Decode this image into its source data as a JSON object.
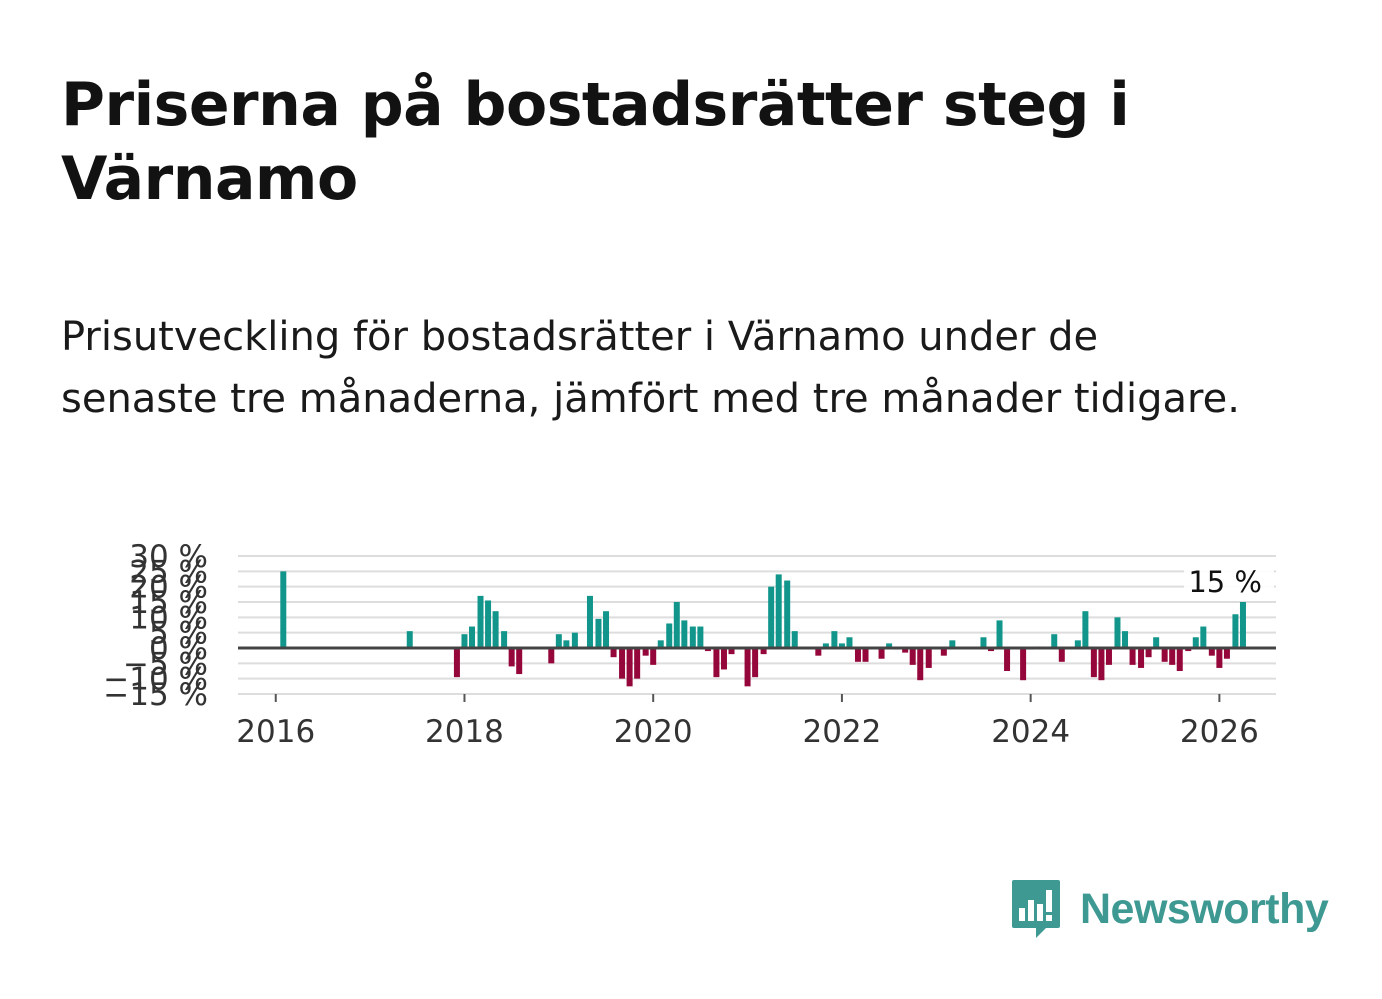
{
  "title": "Priserna på bostadsrätter steg i Värnamo",
  "subtitle": "Prisutveckling för bostadsrätter i Värnamo under de senaste tre månaderna, jämfört med tre månader tidigare.",
  "brand": {
    "name": "Newsworthy",
    "icon": "newsworthy-logo-icon"
  },
  "colors": {
    "positive": "#12968c",
    "negative": "#95063a",
    "grid": "#dddddd",
    "zero": "#444444",
    "brand": "#3e9993"
  },
  "chart_data": {
    "type": "bar",
    "title": "",
    "xlabel": "",
    "ylabel": "",
    "ylim": [
      -15,
      30
    ],
    "xlim": [
      2015.6,
      2026.6
    ],
    "y_ticks": [
      {
        "value": -15,
        "label": "−15 %"
      },
      {
        "value": -10,
        "label": "−10 %"
      },
      {
        "value": -5,
        "label": "−5 %"
      },
      {
        "value": 0,
        "label": "0 %"
      },
      {
        "value": 5,
        "label": "5 %"
      },
      {
        "value": 10,
        "label": "10 %"
      },
      {
        "value": 15,
        "label": "15 %"
      },
      {
        "value": 20,
        "label": "20 %"
      },
      {
        "value": 25,
        "label": "25 %"
      },
      {
        "value": 30,
        "label": "30 %"
      }
    ],
    "x_ticks": [
      {
        "value": 2016,
        "label": "2016"
      },
      {
        "value": 2018,
        "label": "2018"
      },
      {
        "value": 2020,
        "label": "2020"
      },
      {
        "value": 2022,
        "label": "2022"
      },
      {
        "value": 2024,
        "label": "2024"
      },
      {
        "value": 2026,
        "label": "2026"
      }
    ],
    "end_label": "15 %",
    "series": [
      {
        "name": "Prisutveckling",
        "points": [
          [
            2016.08,
            25
          ],
          [
            2017.42,
            5.5
          ],
          [
            2017.92,
            -9.5
          ],
          [
            2018.0,
            4.5
          ],
          [
            2018.08,
            7
          ],
          [
            2018.17,
            17
          ],
          [
            2018.25,
            15.5
          ],
          [
            2018.33,
            12
          ],
          [
            2018.42,
            5.5
          ],
          [
            2018.5,
            -6
          ],
          [
            2018.58,
            -8.5
          ],
          [
            2018.92,
            -5
          ],
          [
            2019.0,
            4.5
          ],
          [
            2019.08,
            2.5
          ],
          [
            2019.17,
            5
          ],
          [
            2019.33,
            17
          ],
          [
            2019.42,
            9.5
          ],
          [
            2019.5,
            12
          ],
          [
            2019.58,
            -3
          ],
          [
            2019.67,
            -10
          ],
          [
            2019.75,
            -12.5
          ],
          [
            2019.83,
            -10
          ],
          [
            2019.92,
            -2.5
          ],
          [
            2020.0,
            -5.5
          ],
          [
            2020.08,
            2.5
          ],
          [
            2020.17,
            8
          ],
          [
            2020.25,
            15
          ],
          [
            2020.33,
            9
          ],
          [
            2020.42,
            7
          ],
          [
            2020.5,
            7
          ],
          [
            2020.58,
            -1
          ],
          [
            2020.67,
            -9.5
          ],
          [
            2020.75,
            -7
          ],
          [
            2020.83,
            -2
          ],
          [
            2020.92,
            -0.5
          ],
          [
            2021.0,
            -12.5
          ],
          [
            2021.08,
            -9.5
          ],
          [
            2021.17,
            -2
          ],
          [
            2021.25,
            20
          ],
          [
            2021.33,
            24
          ],
          [
            2021.42,
            22
          ],
          [
            2021.5,
            5.5
          ],
          [
            2021.75,
            -2.5
          ],
          [
            2021.83,
            1.5
          ],
          [
            2021.92,
            5.5
          ],
          [
            2022.0,
            1.5
          ],
          [
            2022.08,
            3.5
          ],
          [
            2022.17,
            -4.5
          ],
          [
            2022.25,
            -4.5
          ],
          [
            2022.42,
            -3.5
          ],
          [
            2022.5,
            1.5
          ],
          [
            2022.58,
            -0.5
          ],
          [
            2022.67,
            -1.5
          ],
          [
            2022.75,
            -5.5
          ],
          [
            2022.83,
            -10.5
          ],
          [
            2022.92,
            -6.5
          ],
          [
            2023.08,
            -2.5
          ],
          [
            2023.17,
            2.5
          ],
          [
            2023.5,
            3.5
          ],
          [
            2023.58,
            -1
          ],
          [
            2023.67,
            9
          ],
          [
            2023.75,
            -7.5
          ],
          [
            2023.92,
            -10.5
          ],
          [
            2024.0,
            -0.5
          ],
          [
            2024.08,
            0.5
          ],
          [
            2024.25,
            4.5
          ],
          [
            2024.33,
            -4.5
          ],
          [
            2024.5,
            2.5
          ],
          [
            2024.58,
            12
          ],
          [
            2024.67,
            -9.5
          ],
          [
            2024.75,
            -10.5
          ],
          [
            2024.83,
            -5.5
          ],
          [
            2024.92,
            10
          ],
          [
            2025.0,
            5.5
          ],
          [
            2025.08,
            -5.5
          ],
          [
            2025.17,
            -6.5
          ],
          [
            2025.25,
            -3
          ],
          [
            2025.33,
            3.5
          ],
          [
            2025.42,
            -4.5
          ],
          [
            2025.5,
            -5.5
          ],
          [
            2025.58,
            -7.5
          ],
          [
            2025.67,
            -1
          ],
          [
            2025.75,
            3.5
          ],
          [
            2025.83,
            7
          ],
          [
            2025.92,
            -2.5
          ],
          [
            2026.0,
            -6.5
          ],
          [
            2026.08,
            -3.5
          ],
          [
            2026.17,
            11
          ],
          [
            2026.25,
            15
          ]
        ]
      }
    ]
  }
}
